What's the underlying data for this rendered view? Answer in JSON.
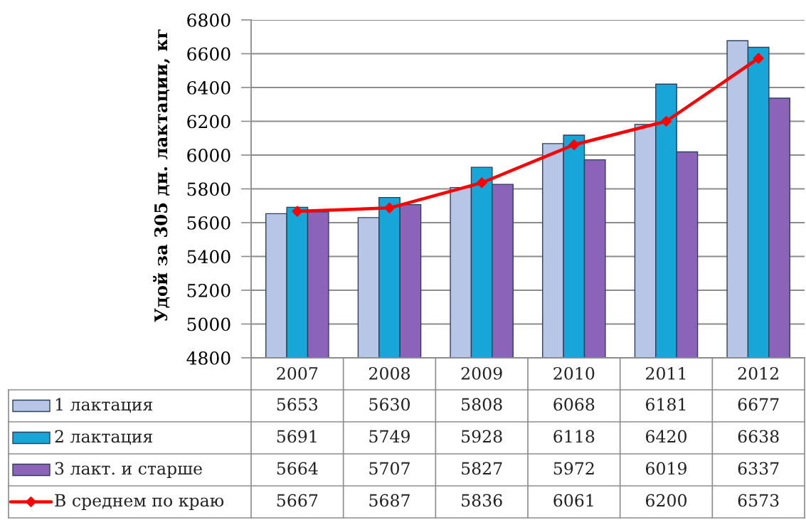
{
  "chart_data": {
    "type": "bar",
    "ylabel": "Удой за 305 дн. лактации, кг",
    "categories": [
      "2007",
      "2008",
      "2009",
      "2010",
      "2011",
      "2012"
    ],
    "series": [
      {
        "name": "1 лактация",
        "color": "#b7c6e7",
        "values": [
          5653,
          5630,
          5808,
          6068,
          6181,
          6677
        ]
      },
      {
        "name": "2 лактация",
        "color": "#18a6d9",
        "values": [
          5691,
          5749,
          5928,
          6118,
          6420,
          6638
        ]
      },
      {
        "name": "3 лакт. и старше",
        "color": "#8b64b9",
        "values": [
          5664,
          5707,
          5827,
          5972,
          6019,
          6337
        ]
      },
      {
        "name": "В среднем по краю",
        "type": "line",
        "color": "#ff0000",
        "marker": "diamond",
        "values": [
          5667,
          5687,
          5836,
          6061,
          6200,
          6573
        ]
      }
    ],
    "ylim": [
      4800,
      6800
    ],
    "yticks": [
      4800,
      5000,
      5200,
      5400,
      5600,
      5800,
      6000,
      6200,
      6400,
      6600,
      6800
    ],
    "grid": "y",
    "legend": "bottom left",
    "data_labels": true
  }
}
